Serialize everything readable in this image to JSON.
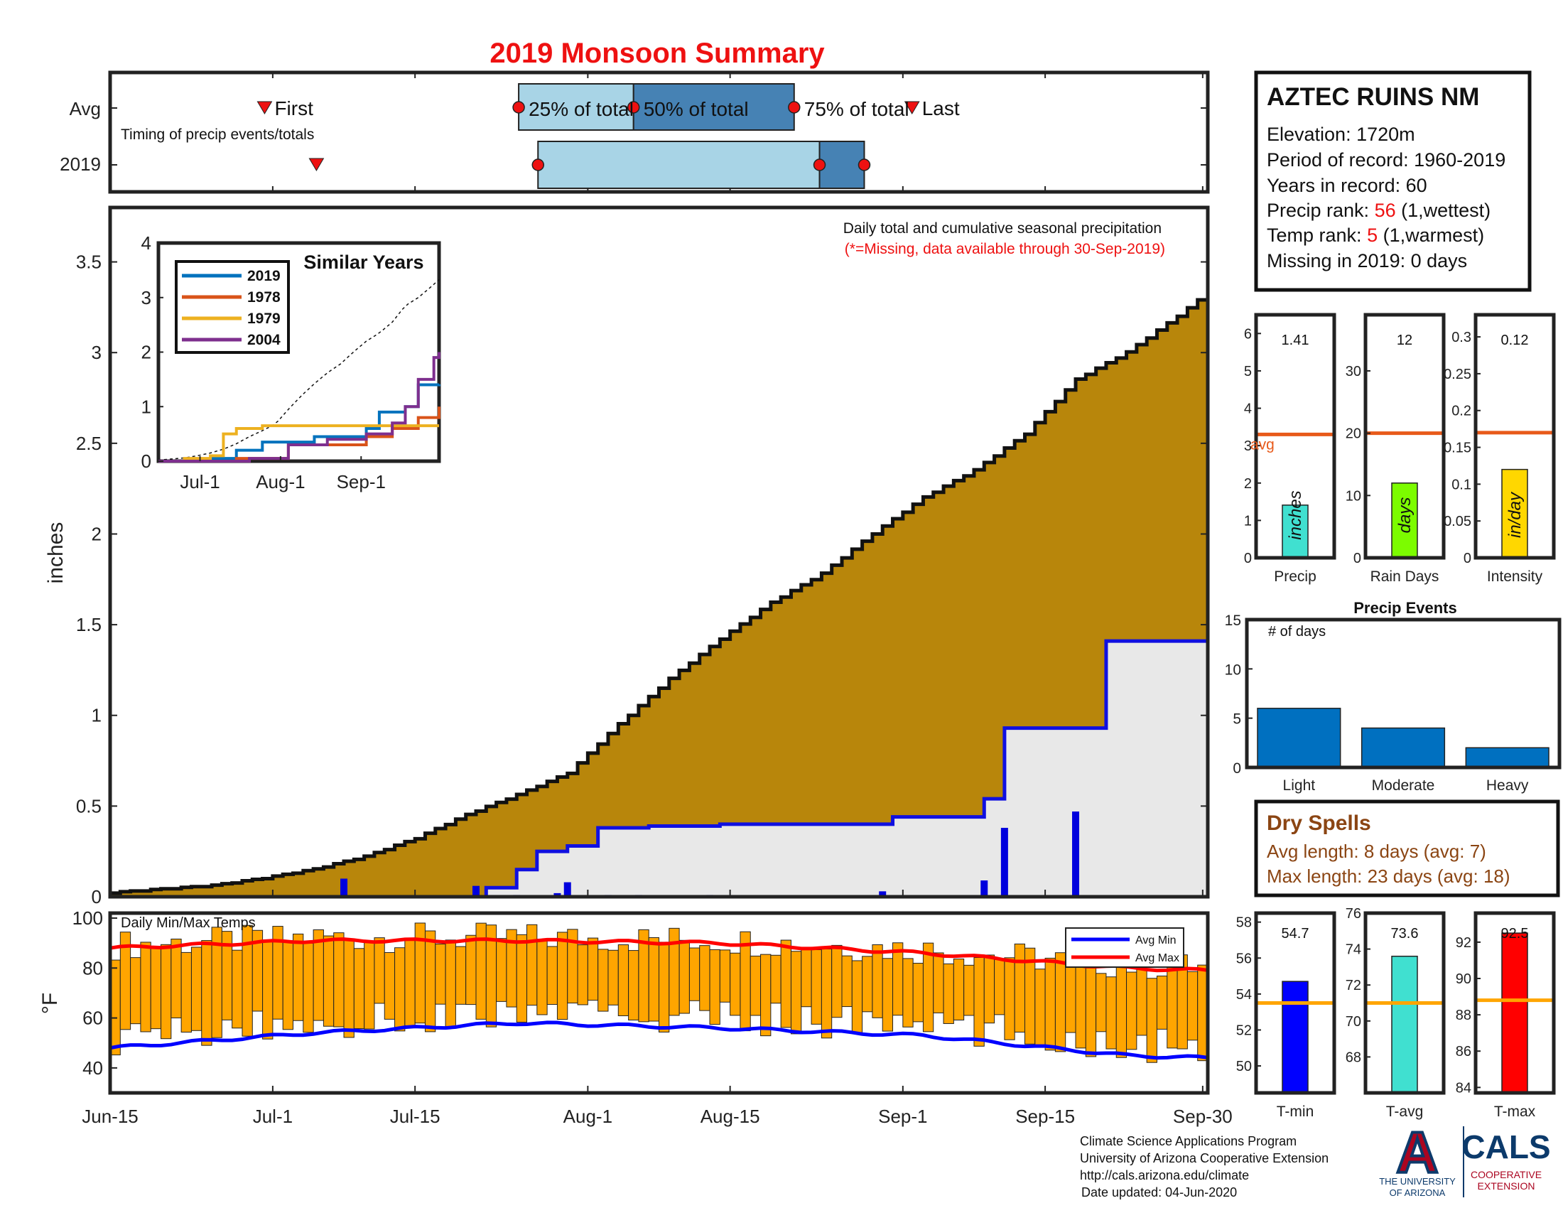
{
  "title": "2019 Monsoon Summary",
  "timing": {
    "row_labels": [
      "Avg",
      "2019"
    ],
    "caption": "Timing of precip events/totals",
    "first_label": "First",
    "last_label": "Last",
    "avg_labels": [
      "25% of total",
      "50% of total",
      "75% of total"
    ],
    "avg": {
      "first": 15.2,
      "p25": 40.2,
      "p50": 51.5,
      "p75": 67.3,
      "last": 78.9
    },
    "y2019": {
      "first": 20.3,
      "p25": 42.1,
      "p75": 69.8,
      "last": 74.2
    }
  },
  "station": {
    "name": "AZTEC RUINS NM",
    "elevation_label": "Elevation: 1720m",
    "period_label": "Period of record: 1960-2019",
    "years_label": "Years in record: 60",
    "precip_rank_prefix": "Precip rank: ",
    "precip_rank_value": "56",
    "precip_rank_suffix": " (1,wettest)",
    "temp_rank_prefix": "Temp rank: ",
    "temp_rank_value": "5",
    "temp_rank_suffix": " (1,warmest)",
    "missing_label": "Missing in 2019: 0 days"
  },
  "main_panel": {
    "note": "Daily total and cumulative seasonal precipitation",
    "missing_note": "(*=Missing, data available through 30-Sep-2019)",
    "ylabel": "inches",
    "yticks": [
      "0",
      "0.5",
      "1",
      "1.5",
      "2",
      "2.5",
      "3",
      "3.5"
    ],
    "xticks": [
      "Jun-15",
      "Jul-1",
      "Jul-15",
      "Aug-1",
      "Aug-15",
      "Sep-1",
      "Sep-15",
      "Sep-30"
    ]
  },
  "inset": {
    "title": "Similar Years",
    "yticks": [
      "0",
      "1",
      "2",
      "3",
      "4"
    ],
    "xticks": [
      "Jul-1",
      "Aug-1",
      "Sep-1"
    ]
  },
  "temp_panel": {
    "label": "Daily Min/Max Temps",
    "ylabel": "°F",
    "yticks": [
      "40",
      "60",
      "80",
      "100"
    ],
    "legend": [
      "Avg Min",
      "Avg Max"
    ]
  },
  "summary_bars": [
    {
      "label": "Precip",
      "unit": "inches",
      "value_label": "1.41",
      "avg_label": "avg",
      "yticks": [
        "0",
        "1",
        "2",
        "3",
        "4",
        "5",
        "6"
      ]
    },
    {
      "label": "Rain Days",
      "unit": "days",
      "value_label": "12",
      "yticks": [
        "0",
        "10",
        "20",
        "30"
      ]
    },
    {
      "label": "Intensity",
      "unit": "in/day",
      "value_label": "0.12",
      "yticks": [
        "0",
        "0.05",
        "0.1",
        "0.15",
        "0.2",
        "0.25",
        "0.3"
      ]
    }
  ],
  "events": {
    "title": "Precip Events",
    "ylabel": "# of days",
    "yticks": [
      "0",
      "5",
      "10",
      "15"
    ]
  },
  "dry_spells": {
    "title": "Dry Spells",
    "avg_line": "Avg length: 8 days (avg: 7)",
    "max_line": "Max length: 23 days (avg: 18)"
  },
  "temp_bars": [
    {
      "label": "T-min",
      "value_label": "54.7",
      "yticks": [
        "50",
        "52",
        "54",
        "56",
        "58"
      ]
    },
    {
      "label": "T-avg",
      "value_label": "73.6",
      "yticks": [
        "68",
        "70",
        "72",
        "74",
        "76"
      ]
    },
    {
      "label": "T-max",
      "value_label": "92.5",
      "yticks": [
        "84",
        "86",
        "88",
        "90",
        "92"
      ]
    }
  ],
  "footer": {
    "line1": "Climate Science Applications Program",
    "line2": "University of Arizona Cooperative Extension",
    "line3": "http://cals.arizona.edu/climate",
    "line4": "Date updated: 04-Jun-2020"
  },
  "logos": {
    "ua_letter": "A",
    "ua_line1": "THE UNIVERSITY",
    "ua_line2": "OF ARIZONA",
    "cals": "CALS",
    "cals_line1": "COOPERATIVE",
    "cals_line2": "EXTENSION"
  },
  "colors": {
    "title": "#ee1111",
    "cumulative_fill": "#b8860b",
    "avg_fill": "#e8e8e8",
    "avg_line": "#1010e0",
    "daily_bar": "#0000dd",
    "temp_bar": "#ffa500",
    "avg_max_line": "#ff0000",
    "avg_min_line": "#0000ff",
    "light_blue": "#a8d4e6",
    "mid_blue": "#4682b4",
    "event_bar": "#0070c0",
    "avg_marker": "#e85a1a",
    "precip_bar": "#40e0d0",
    "days_bar": "#7cfc00",
    "intensity_bar": "#ffd700",
    "tmin_bar": "#0000ff",
    "tavg_bar": "#40e0d0",
    "tmax_bar": "#ff0000",
    "dry_text": "#8b4513",
    "cals_blue": "#0c3a6b",
    "ua_red": "#ab0520"
  },
  "chart_data": [
    {
      "type": "area",
      "title": "Daily total and cumulative seasonal precipitation",
      "x_start": "Jun-15",
      "x_end": "Sep-30",
      "ylabel": "inches",
      "ylim": [
        0,
        3.8
      ],
      "series": [
        {
          "name": "2019",
          "x_day": [
            0,
            5,
            10,
            15,
            20,
            25,
            30,
            35,
            40,
            45,
            50,
            55,
            60,
            65,
            70,
            75,
            80,
            85,
            90,
            95,
            100,
            105,
            108
          ],
          "values": [
            0.02,
            0.04,
            0.06,
            0.1,
            0.15,
            0.22,
            0.32,
            0.45,
            0.56,
            0.68,
            0.95,
            1.2,
            1.42,
            1.62,
            1.78,
            2.0,
            2.2,
            2.35,
            2.55,
            2.85,
            3.0,
            3.2,
            3.33
          ]
        },
        {
          "name": "Avg",
          "x_day": [
            0,
            21,
            37,
            40,
            42,
            45,
            48,
            53,
            60,
            70,
            77,
            86,
            88,
            91,
            98,
            108
          ],
          "values": [
            0.0,
            0.0,
            0.05,
            0.15,
            0.25,
            0.28,
            0.38,
            0.39,
            0.4,
            0.4,
            0.44,
            0.54,
            0.93,
            0.93,
            1.41,
            1.41
          ]
        },
        {
          "name": "Daily",
          "x_day": [
            23,
            36,
            40,
            44,
            45,
            49,
            52,
            59,
            76,
            86,
            88,
            95
          ],
          "values": [
            0.1,
            0.06,
            0.01,
            0.02,
            0.08,
            0.01,
            0.01,
            0.01,
            0.03,
            0.09,
            0.38,
            0.47
          ]
        }
      ]
    },
    {
      "type": "line",
      "title": "Similar Years",
      "xticks": [
        "Jul-1",
        "Aug-1",
        "Sep-1"
      ],
      "ylim": [
        0,
        4
      ],
      "series": [
        {
          "name": "2019",
          "x_day": [
            0,
            20,
            30,
            40,
            60,
            80,
            85,
            95,
            100,
            108
          ],
          "values": [
            0,
            0.05,
            0.2,
            0.35,
            0.45,
            0.6,
            0.9,
            1.0,
            1.4,
            1.41
          ]
        },
        {
          "name": "1978",
          "x_day": [
            0,
            30,
            50,
            80,
            90,
            100,
            108
          ],
          "values": [
            0,
            0.05,
            0.3,
            0.45,
            0.6,
            0.8,
            1.0
          ]
        },
        {
          "name": "1979",
          "x_day": [
            0,
            10,
            20,
            25,
            30,
            40,
            108
          ],
          "values": [
            0,
            0.05,
            0.1,
            0.5,
            0.6,
            0.65,
            0.65
          ]
        },
        {
          "name": "2004",
          "x_day": [
            0,
            35,
            50,
            65,
            80,
            90,
            95,
            100,
            106,
            108
          ],
          "values": [
            0,
            0.05,
            0.3,
            0.4,
            0.5,
            0.7,
            1.0,
            1.5,
            1.9,
            2.0
          ]
        }
      ]
    },
    {
      "type": "bar",
      "title": "Daily Min/Max Temps",
      "ylabel": "°F",
      "ylim": [
        30,
        102
      ],
      "series": [
        {
          "name": "Avg Max",
          "x_day": [
            0,
            20,
            40,
            60,
            80,
            100,
            108
          ],
          "values": [
            88,
            91,
            91,
            90,
            86,
            80,
            79
          ]
        },
        {
          "name": "Avg Min",
          "x_day": [
            0,
            20,
            40,
            60,
            80,
            100,
            108
          ],
          "values": [
            48,
            54,
            58,
            56,
            53,
            45,
            44
          ]
        }
      ]
    },
    {
      "type": "bar",
      "categories": [
        "Precip"
      ],
      "values": [
        1.41
      ],
      "avg": 3.3,
      "ylim": [
        0,
        6.5
      ]
    },
    {
      "type": "bar",
      "categories": [
        "Rain Days"
      ],
      "values": [
        12
      ],
      "avg": 20,
      "ylim": [
        0,
        39
      ]
    },
    {
      "type": "bar",
      "categories": [
        "Intensity"
      ],
      "values": [
        0.12
      ],
      "avg": 0.17,
      "ylim": [
        0,
        0.33
      ]
    },
    {
      "type": "bar",
      "title": "Precip Events",
      "categories": [
        "Light",
        "Moderate",
        "Heavy"
      ],
      "values": [
        6,
        4,
        2
      ],
      "ylim": [
        0,
        15
      ]
    },
    {
      "type": "bar",
      "categories": [
        "T-min"
      ],
      "values": [
        54.7
      ],
      "avg": 53.5,
      "ylim": [
        48.5,
        58.5
      ]
    },
    {
      "type": "bar",
      "categories": [
        "T-avg"
      ],
      "values": [
        73.6
      ],
      "avg": 71.0,
      "ylim": [
        66,
        76
      ]
    },
    {
      "type": "bar",
      "categories": [
        "T-max"
      ],
      "values": [
        92.5
      ],
      "avg": 88.8,
      "ylim": [
        83.7,
        93.6
      ]
    }
  ]
}
